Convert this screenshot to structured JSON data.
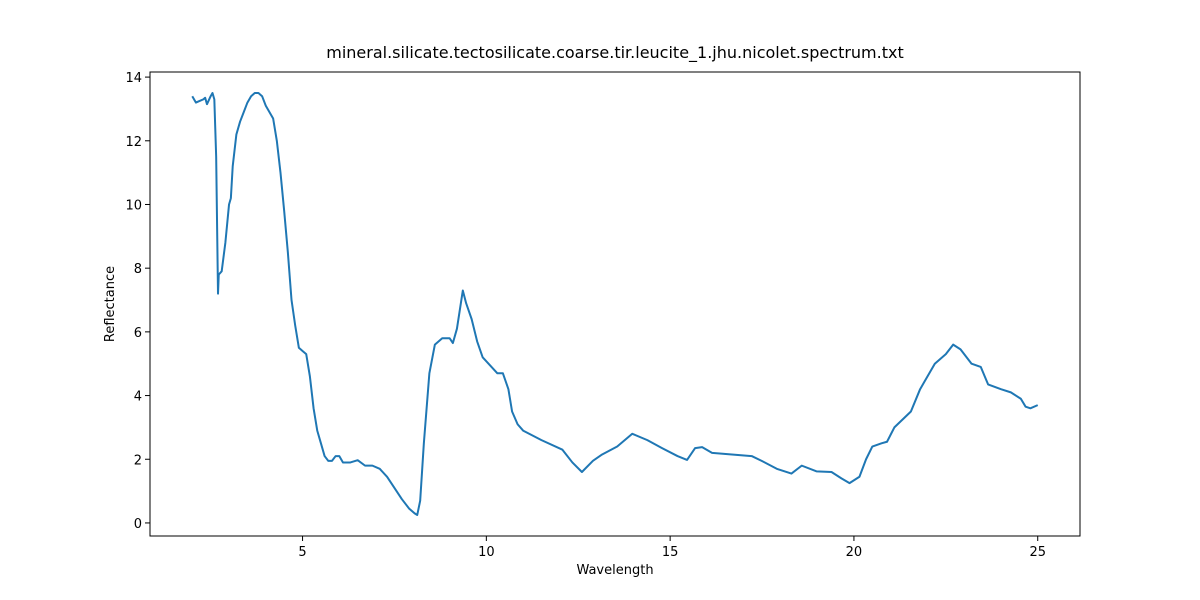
{
  "chart_data": {
    "type": "line",
    "title": "mineral.silicate.tectosilicate.coarse.tir.leucite_1.jhu.nicolet.spectrum.txt",
    "x_label": "Wavelength",
    "y_label": "Reflectance",
    "xlim": [
      0.85,
      26.15
    ],
    "ylim": [
      -0.41,
      14.16
    ],
    "xticks": [
      5,
      10,
      15,
      20,
      25
    ],
    "yticks": [
      0,
      2,
      4,
      6,
      8,
      10,
      12,
      14
    ],
    "x": [
      2.0,
      2.1,
      2.2,
      2.3,
      2.35,
      2.4,
      2.5,
      2.55,
      2.6,
      2.65,
      2.7,
      2.72,
      2.8,
      2.9,
      3.0,
      3.05,
      3.1,
      3.2,
      3.3,
      3.4,
      3.5,
      3.6,
      3.7,
      3.8,
      3.9,
      4.0,
      4.2,
      4.3,
      4.4,
      4.5,
      4.6,
      4.7,
      4.8,
      4.9,
      5.0,
      5.1,
      5.2,
      5.3,
      5.4,
      5.5,
      5.6,
      5.7,
      5.8,
      5.9,
      6.0,
      6.1,
      6.3,
      6.5,
      6.7,
      6.9,
      7.1,
      7.3,
      7.5,
      7.7,
      7.9,
      8.05,
      8.12,
      8.2,
      8.3,
      8.45,
      8.6,
      8.8,
      9.0,
      9.09,
      9.2,
      9.36,
      9.45,
      9.6,
      9.75,
      9.9,
      10.1,
      10.3,
      10.45,
      10.6,
      10.7,
      10.85,
      11.0,
      11.5,
      12.07,
      12.34,
      12.6,
      12.9,
      13.15,
      13.56,
      13.97,
      14.38,
      14.78,
      15.2,
      15.46,
      15.68,
      15.87,
      16.14,
      16.68,
      17.22,
      17.49,
      17.9,
      18.3,
      18.58,
      18.98,
      19.39,
      19.66,
      19.88,
      20.15,
      20.33,
      20.5,
      20.75,
      20.9,
      21.1,
      21.55,
      21.8,
      22.2,
      22.5,
      22.7,
      22.9,
      23.2,
      23.45,
      23.65,
      24.0,
      24.27,
      24.54,
      24.67,
      24.8,
      25.0
    ],
    "series": [
      {
        "name": "leucite",
        "color": "#1f77b4",
        "values": [
          13.4,
          13.2,
          13.25,
          13.3,
          13.35,
          13.15,
          13.4,
          13.5,
          13.3,
          11.5,
          7.2,
          7.8,
          7.9,
          8.8,
          10.0,
          10.2,
          11.2,
          12.2,
          12.6,
          12.9,
          13.2,
          13.4,
          13.5,
          13.5,
          13.4,
          13.1,
          12.7,
          12.0,
          11.0,
          9.8,
          8.5,
          7.0,
          6.2,
          5.5,
          5.4,
          5.3,
          4.6,
          3.6,
          2.9,
          2.5,
          2.1,
          1.95,
          1.95,
          2.1,
          2.1,
          1.9,
          1.9,
          1.97,
          1.8,
          1.8,
          1.7,
          1.45,
          1.1,
          0.75,
          0.45,
          0.3,
          0.25,
          0.7,
          2.5,
          4.7,
          5.6,
          5.8,
          5.8,
          5.65,
          6.1,
          7.3,
          6.9,
          6.4,
          5.7,
          5.2,
          4.95,
          4.7,
          4.7,
          4.2,
          3.5,
          3.1,
          2.9,
          2.6,
          2.3,
          1.9,
          1.6,
          1.95,
          2.15,
          2.4,
          2.8,
          2.6,
          2.35,
          2.1,
          1.98,
          2.35,
          2.38,
          2.2,
          2.15,
          2.1,
          1.95,
          1.7,
          1.55,
          1.8,
          1.62,
          1.6,
          1.4,
          1.25,
          1.45,
          2.0,
          2.4,
          2.5,
          2.55,
          3.0,
          3.5,
          4.2,
          5.0,
          5.3,
          5.6,
          5.45,
          5.0,
          4.9,
          4.35,
          4.2,
          4.1,
          3.9,
          3.65,
          3.6,
          3.7
        ]
      }
    ]
  }
}
